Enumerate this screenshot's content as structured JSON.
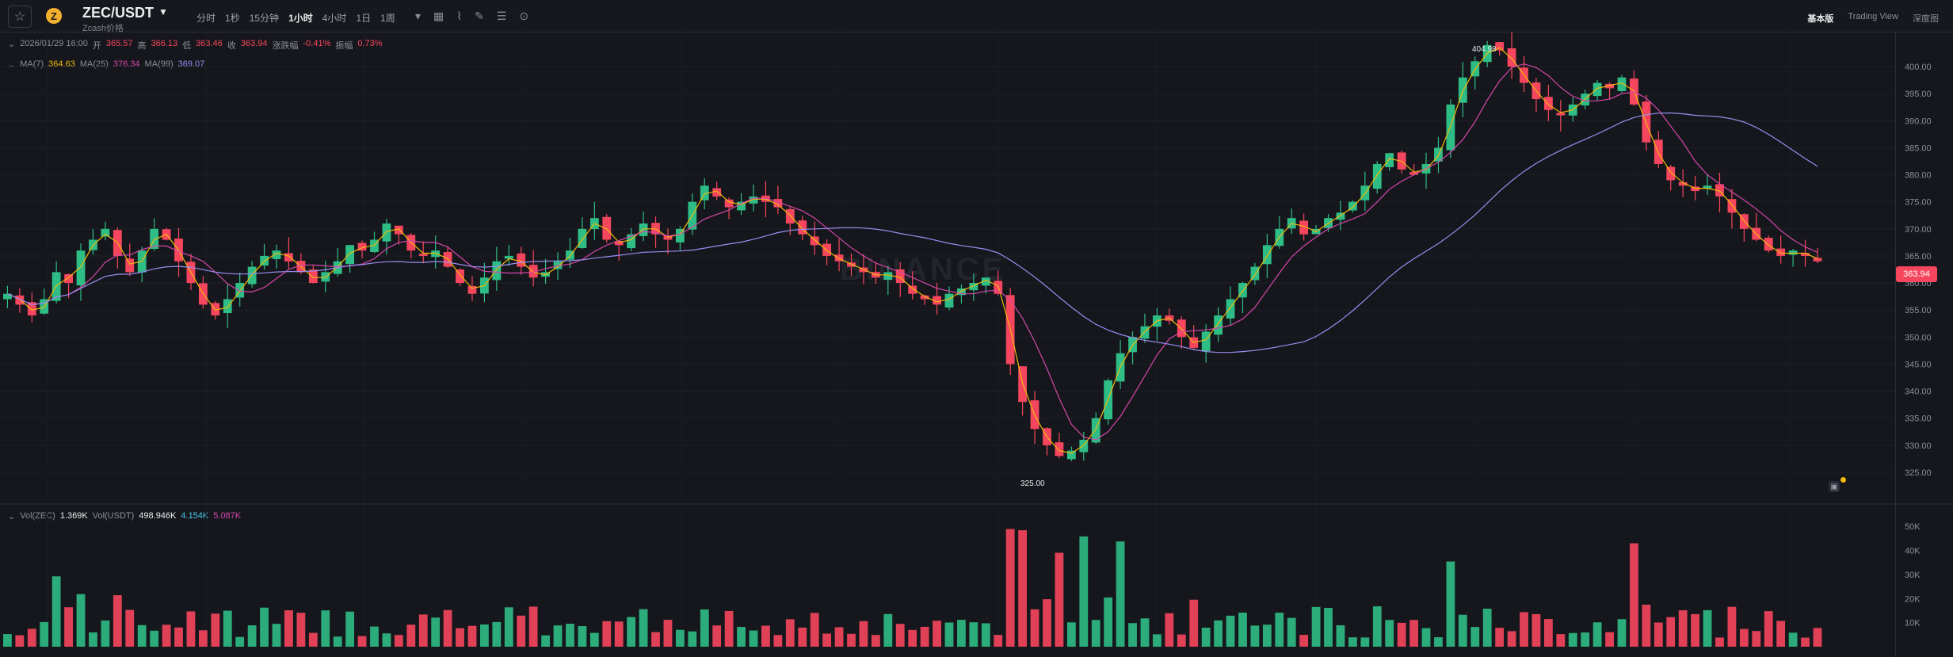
{
  "header": {
    "pair": "ZEC/USDT",
    "subtitle": "Zcash价格",
    "intervals": [
      {
        "label": "分时",
        "active": false
      },
      {
        "label": "1秒",
        "active": false
      },
      {
        "label": "15分钟",
        "active": false
      },
      {
        "label": "1小时",
        "active": true
      },
      {
        "label": "4小时",
        "active": false
      },
      {
        "label": "1日",
        "active": false
      },
      {
        "label": "1周",
        "active": false
      }
    ],
    "tool_icons": [
      "caret-down-icon",
      "calendar-icon",
      "indicator-icon",
      "draw-tool-icon",
      "settings-icon",
      "layout-icon"
    ],
    "views": [
      {
        "label": "基本版",
        "active": true
      },
      {
        "label": "Trading View",
        "active": false
      },
      {
        "label": "深度图",
        "active": false
      }
    ]
  },
  "ohlc": {
    "date": "2026/01/29 16:00",
    "open_label": "开",
    "open": "365.57",
    "high_label": "高",
    "high": "366.13",
    "low_label": "低",
    "low": "363.46",
    "close_label": "收",
    "close": "363.94",
    "change_label": "涨跌幅",
    "change": "-0.41%",
    "amp_label": "振幅",
    "amp": "0.73%"
  },
  "ma": {
    "ma7_label": "MA(7)",
    "ma7": "364.63",
    "ma25_label": "MA(25)",
    "ma25": "376.34",
    "ma99_label": "MA(99)",
    "ma99": "369.07"
  },
  "vol": {
    "zec_label": "Vol(ZEC)",
    "zec": "1.369K",
    "usdt_label": "Vol(USDT)",
    "usdt": "498.946K",
    "ma1": "4.154K",
    "ma2": "5.087K"
  },
  "markers": {
    "high": "404.98",
    "low": "325.00",
    "last": "363.94"
  },
  "watermark": "BINANCE",
  "colors": {
    "up": "#2ebd85",
    "down": "#f6465d",
    "ma7": "#f0b90b",
    "ma25": "#d447a8",
    "ma99": "#9a8cf0",
    "bg": "#16171d"
  },
  "chart_data": {
    "type": "candlestick",
    "price_axis": {
      "min": 320,
      "max": 405,
      "ticks": [
        325,
        330,
        335,
        340,
        345,
        350,
        355,
        360,
        365,
        370,
        375,
        380,
        385,
        390,
        395,
        400
      ]
    },
    "volume_axis": {
      "ticks": [
        "10K",
        "20K",
        "30K",
        "40K",
        "50K"
      ]
    },
    "price_path": [
      358,
      356,
      354,
      357,
      362,
      360,
      366,
      368,
      370,
      365,
      362,
      366,
      370,
      368,
      364,
      360,
      356,
      354,
      357,
      360,
      363,
      365,
      366,
      364,
      362,
      360,
      362,
      364,
      367,
      366,
      368,
      371,
      369,
      366,
      365,
      366,
      363,
      360,
      358,
      361,
      364,
      365,
      363,
      361,
      362,
      364,
      366,
      370,
      372,
      368,
      367,
      369,
      371,
      369,
      368,
      370,
      375,
      378,
      376,
      374,
      375,
      376,
      375,
      374,
      371,
      369,
      367,
      365,
      364,
      363,
      362,
      361,
      362,
      360,
      358,
      357,
      356,
      358,
      359,
      360,
      361,
      358,
      345,
      338,
      333,
      330,
      328,
      329,
      331,
      335,
      342,
      347,
      350,
      352,
      354,
      353,
      350,
      348,
      351,
      354,
      357,
      360,
      363,
      367,
      370,
      372,
      369,
      370,
      372,
      373,
      375,
      378,
      382,
      384,
      381,
      380,
      382,
      385,
      393,
      398,
      401,
      404,
      403,
      400,
      397,
      394,
      392,
      391,
      393,
      395,
      397,
      396,
      398,
      393,
      386,
      382,
      379,
      378,
      377,
      378,
      376,
      373,
      370,
      368,
      366,
      365,
      366,
      365,
      364
    ]
  }
}
